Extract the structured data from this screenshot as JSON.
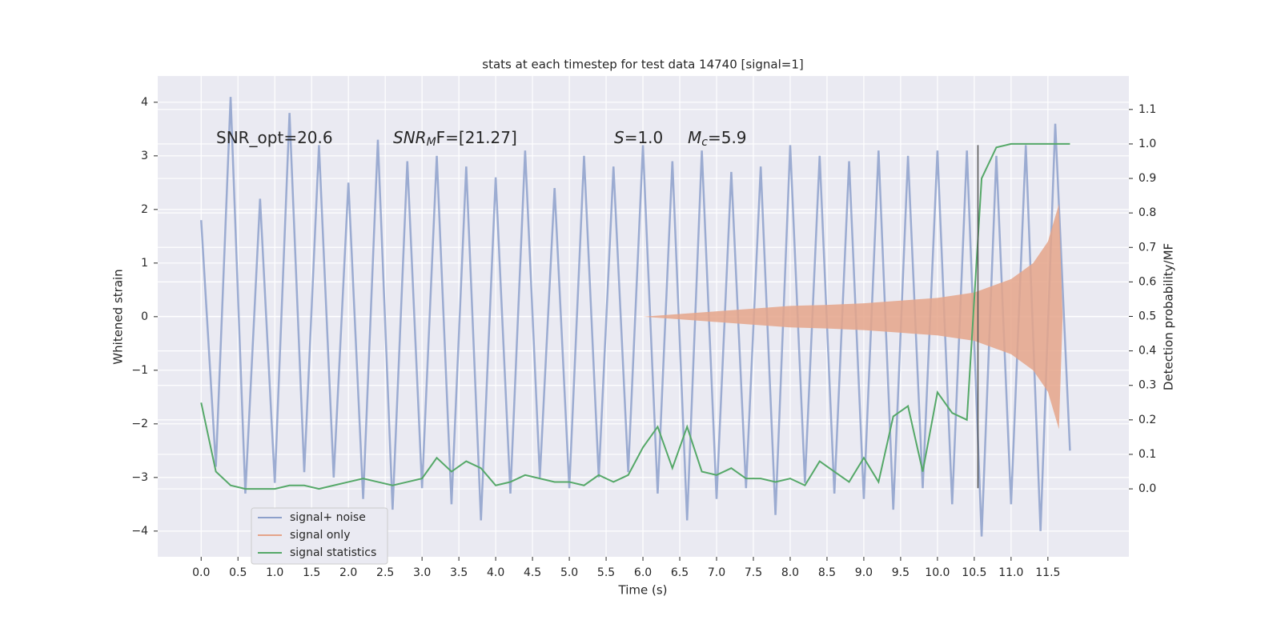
{
  "chart_data": {
    "type": "line",
    "title": "stats at each timestep for test data 14740 [signal=1]",
    "xlabel": "Time (s)",
    "ylabel": "Whitened strain",
    "y2label": "Detection probability/MF",
    "xlim": [
      -0.59,
      12.6
    ],
    "ylim": [
      -4.48,
      4.49
    ],
    "y2lim": [
      -0.197,
      1.197
    ],
    "xticks": [
      {
        "value": 0,
        "label": "0.0"
      },
      0.5,
      {
        "value": 1,
        "label": "1.0"
      },
      1.5,
      {
        "value": 2,
        "label": "2.0"
      },
      2.5,
      {
        "value": 3,
        "label": "3.0"
      },
      3.5,
      {
        "value": 4,
        "label": "4.0"
      },
      4.5,
      {
        "value": 5,
        "label": "5.0"
      },
      5.5,
      {
        "value": 6,
        "label": "6.0"
      },
      6.5,
      {
        "value": 7,
        "label": "7.0"
      },
      7.5,
      {
        "value": 8,
        "label": "8.0"
      },
      8.5,
      {
        "value": 9,
        "label": "9.0"
      },
      9.5,
      {
        "value": 10,
        "label": "10.0"
      },
      10.5,
      {
        "value": 11,
        "label": "11.0"
      },
      11.5
    ],
    "yticks": [
      {
        "value": -4,
        "label": "−4"
      },
      {
        "value": -3,
        "label": "−3"
      },
      {
        "value": -2,
        "label": "−2"
      },
      {
        "value": -1,
        "label": "−1"
      },
      0,
      1,
      2,
      3,
      4
    ],
    "y2ticks": [
      {
        "value": 0,
        "label": "0.0"
      },
      0.1,
      0.2,
      0.3,
      0.4,
      0.5,
      0.6,
      0.7,
      0.8,
      0.9,
      {
        "value": 1,
        "label": "1.0"
      },
      1.1
    ],
    "grid": true,
    "legend": "lower left",
    "series": [
      {
        "name": "signal+ noise",
        "color": "#8da0cb",
        "kind": "line",
        "x": [
          0,
          0.2,
          0.4,
          0.6,
          0.8,
          1.0,
          1.2,
          1.4,
          1.6,
          1.8,
          2.0,
          2.2,
          2.4,
          2.6,
          2.8,
          3.0,
          3.2,
          3.4,
          3.6,
          3.8,
          4.0,
          4.2,
          4.4,
          4.6,
          4.8,
          5.0,
          5.2,
          5.4,
          5.6,
          5.8,
          6.0,
          6.2,
          6.4,
          6.6,
          6.8,
          7.0,
          7.2,
          7.4,
          7.6,
          7.8,
          8.0,
          8.2,
          8.4,
          8.6,
          8.8,
          9.0,
          9.2,
          9.4,
          9.6,
          9.8,
          10.0,
          10.2,
          10.4,
          10.6,
          10.8,
          11.0,
          11.2,
          11.4,
          11.6,
          11.8
        ],
        "values": [
          1.8,
          -2.8,
          4.1,
          -3.3,
          2.2,
          -3.1,
          3.8,
          -2.9,
          3.2,
          -3.0,
          2.5,
          -3.4,
          3.3,
          -3.6,
          2.9,
          -3.2,
          3.0,
          -3.5,
          2.8,
          -3.8,
          2.6,
          -3.3,
          3.1,
          -3.0,
          2.4,
          -3.2,
          3.0,
          -3.0,
          2.8,
          -2.9,
          3.2,
          -3.3,
          2.9,
          -3.8,
          3.1,
          -3.4,
          2.7,
          -3.2,
          2.8,
          -3.7,
          3.2,
          -3.1,
          3.0,
          -3.3,
          2.9,
          -3.4,
          3.1,
          -3.6,
          3.0,
          -3.2,
          3.1,
          -3.5,
          3.1,
          -4.1,
          3.0,
          -3.5,
          3.2,
          -4.0,
          3.6,
          -2.5
        ]
      },
      {
        "name": "signal only",
        "color": "#e5a48a",
        "kind": "envelope",
        "x": [
          6.0,
          6.5,
          7.0,
          7.5,
          8.0,
          8.5,
          9.0,
          9.5,
          10.0,
          10.5,
          11.0,
          11.3,
          11.5,
          11.65,
          11.7
        ],
        "values": [
          0.0,
          0.05,
          0.1,
          0.15,
          0.2,
          0.22,
          0.25,
          0.3,
          0.35,
          0.45,
          0.7,
          1.0,
          1.4,
          2.1,
          0.0
        ]
      },
      {
        "name": "signal statistics",
        "color": "#55a868",
        "kind": "line",
        "axis": "y2",
        "x": [
          0,
          0.2,
          0.4,
          0.6,
          0.8,
          1.0,
          1.2,
          1.4,
          1.6,
          1.8,
          2.0,
          2.2,
          2.4,
          2.6,
          2.8,
          3.0,
          3.2,
          3.4,
          3.6,
          3.8,
          4.0,
          4.2,
          4.4,
          4.6,
          4.8,
          5.0,
          5.2,
          5.4,
          5.6,
          5.8,
          6.0,
          6.2,
          6.4,
          6.6,
          6.8,
          7.0,
          7.2,
          7.4,
          7.6,
          7.8,
          8.0,
          8.2,
          8.4,
          8.6,
          8.8,
          9.0,
          9.2,
          9.4,
          9.6,
          9.8,
          10.0,
          10.2,
          10.4,
          10.6,
          10.8,
          11.0,
          11.2,
          11.4,
          11.6,
          11.8
        ],
        "values": [
          0.25,
          0.05,
          0.01,
          0.0,
          0.0,
          0.0,
          0.01,
          0.01,
          0.0,
          0.01,
          0.02,
          0.03,
          0.02,
          0.01,
          0.02,
          0.03,
          0.09,
          0.05,
          0.08,
          0.06,
          0.01,
          0.02,
          0.04,
          0.03,
          0.02,
          0.02,
          0.01,
          0.04,
          0.02,
          0.04,
          0.12,
          0.18,
          0.06,
          0.18,
          0.05,
          0.04,
          0.06,
          0.03,
          0.03,
          0.02,
          0.03,
          0.01,
          0.08,
          0.05,
          0.02,
          0.09,
          0.02,
          0.21,
          0.24,
          0.05,
          0.28,
          0.22,
          0.2,
          0.9,
          0.99,
          1.0,
          1.0,
          1.0,
          1.0,
          1.0
        ]
      }
    ],
    "vline": {
      "x": 10.55,
      "y": [
        -3.2,
        3.2
      ]
    },
    "annotations": [
      {
        "text": "SNR_opt=20.6"
      },
      {
        "italic": "SNR",
        "sub": "M",
        "text": "F=[21.27]"
      },
      {
        "italic": "S",
        "text": "=1.0"
      },
      {
        "italic": "M",
        "sub": "c",
        "text": "=5.9"
      }
    ]
  }
}
